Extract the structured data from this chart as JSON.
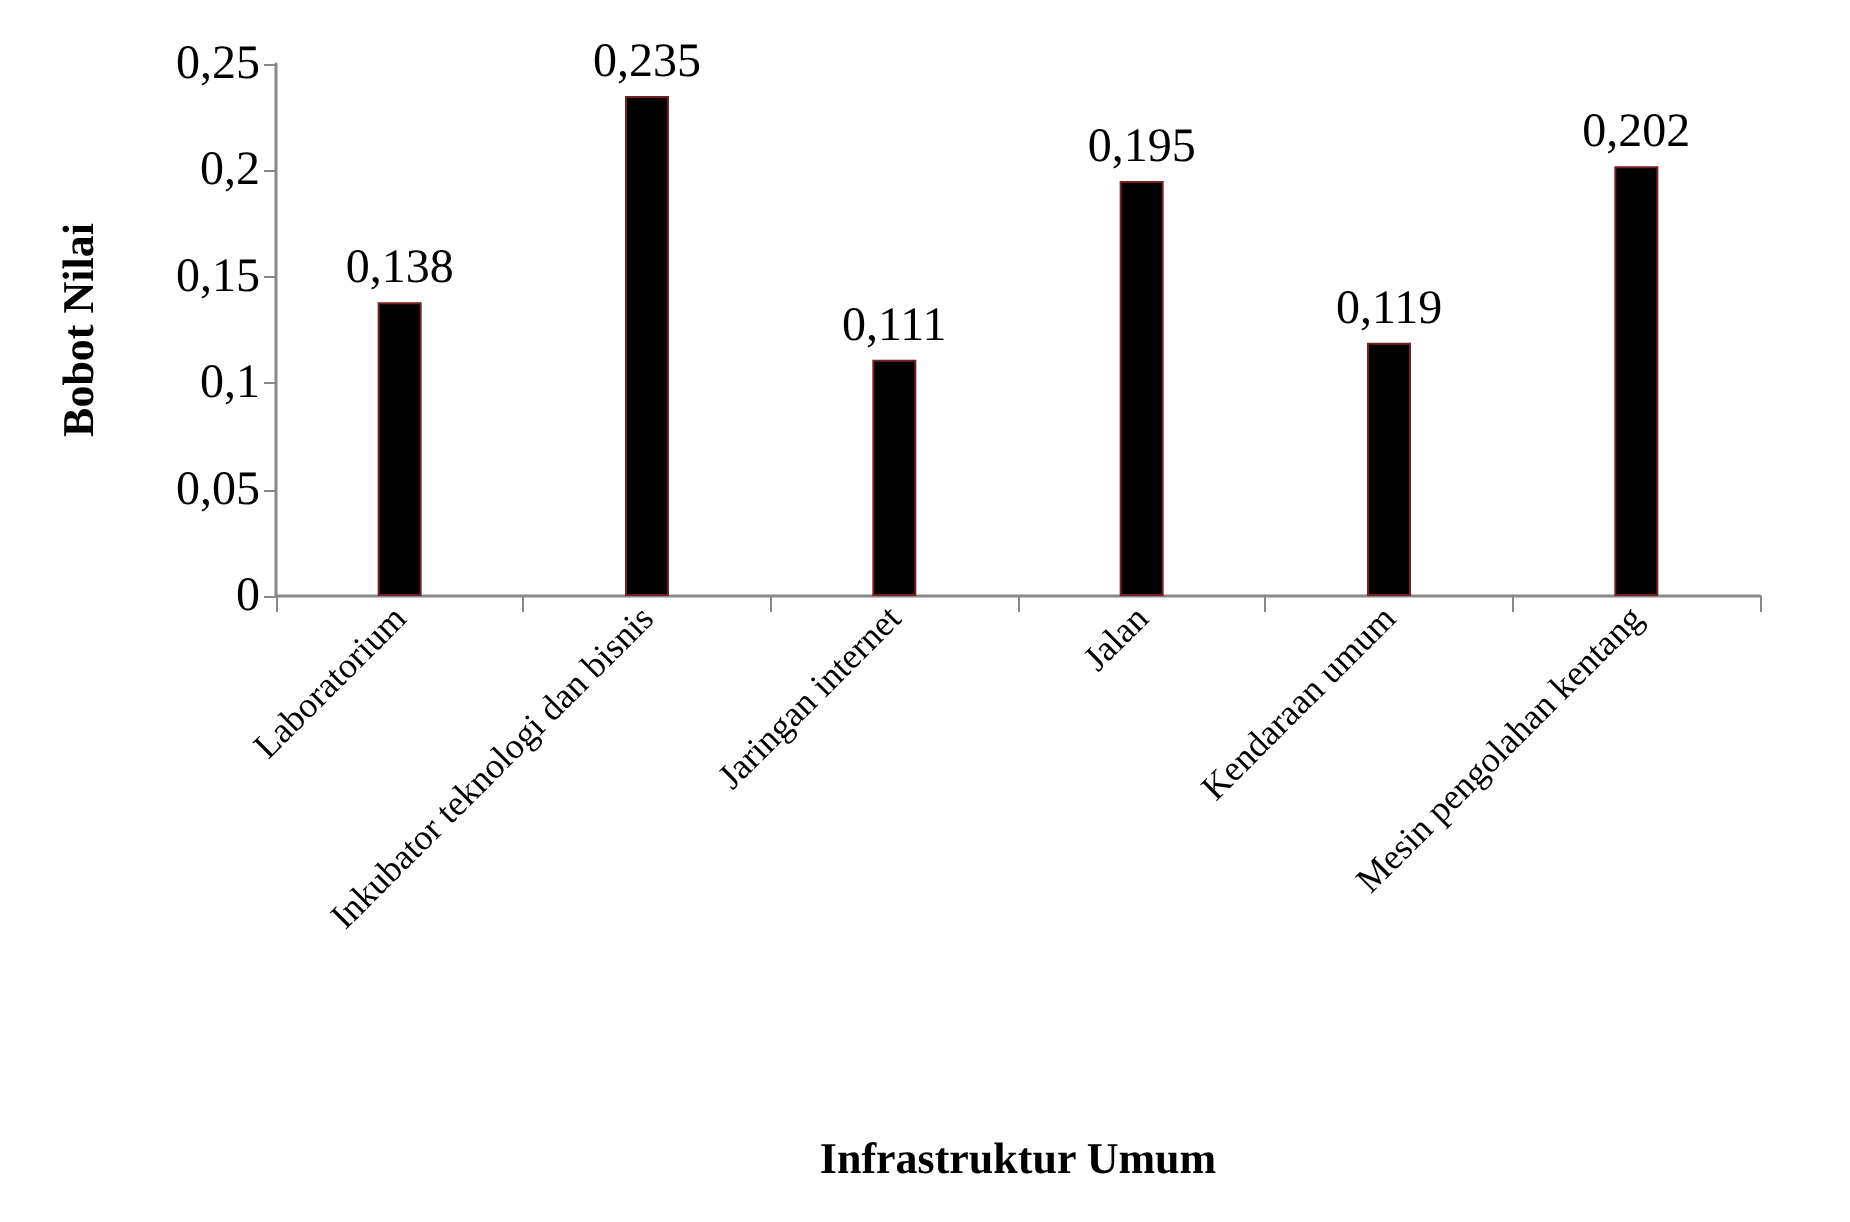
{
  "chart_data": {
    "type": "bar",
    "xlabel": "Infrastruktur Umum",
    "ylabel": "Bobot Nilai",
    "categories": [
      "Laboratorium",
      "Inkubator teknologi dan bisnis",
      "Jaringan internet",
      "Jalan",
      "Kendaraan umum",
      "Mesin pengolahan kentang"
    ],
    "values": [
      0.138,
      0.235,
      0.111,
      0.195,
      0.119,
      0.202
    ],
    "value_labels": [
      "0,138",
      "0,235",
      "0,111",
      "0,195",
      "0,119",
      "0,202"
    ],
    "color": "#000000",
    "ylim": [
      0,
      0.25
    ],
    "yticks": [
      {
        "value": 0,
        "label": "0"
      },
      {
        "value": 0.05,
        "label": "0,05"
      },
      {
        "value": 0.1,
        "label": "0,1"
      },
      {
        "value": 0.15,
        "label": "0,15"
      },
      {
        "value": 0.2,
        "label": "0,2"
      },
      {
        "value": 0.25,
        "label": "0,25"
      }
    ],
    "grid": false
  }
}
